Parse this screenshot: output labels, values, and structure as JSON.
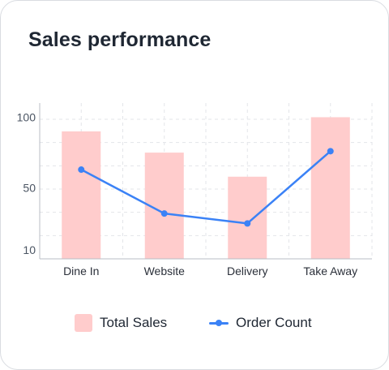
{
  "card": {
    "title": "Sales performance"
  },
  "chart_data": {
    "type": "bar",
    "title": "Sales performance",
    "categories": [
      "Dine In",
      "Website",
      "Delivery",
      "Take Away"
    ],
    "series": [
      {
        "name": "Total Sales",
        "type": "bar",
        "values": [
          90,
          75,
          58,
          100
        ],
        "color": "#ffcccc"
      },
      {
        "name": "Order Count",
        "type": "line",
        "values": [
          63,
          32,
          25,
          76
        ],
        "color": "#3b82f6"
      }
    ],
    "yticks": [
      10,
      50,
      100
    ],
    "ylim": [
      0,
      110
    ],
    "grid": true,
    "legend": "bottom"
  }
}
